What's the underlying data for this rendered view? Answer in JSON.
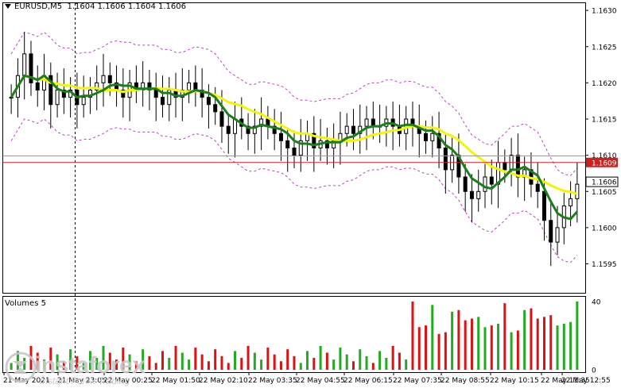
{
  "header": {
    "symbol_tf": "EURUSD,M5",
    "quote": "1.1604 1.1606 1.1604 1.1606"
  },
  "price_axis": {
    "ticks": [
      "1.1630",
      "1.1625",
      "1.1620",
      "1.1615",
      "1.1610",
      "1.1605",
      "1.1600",
      "1.1595"
    ],
    "red_label": "1.1609",
    "current_label": "1.1606"
  },
  "volume_panel": {
    "title": "Volumes 5",
    "ticks": [
      "40",
      "0"
    ]
  },
  "time_axis": {
    "labels": [
      "21 May 2021",
      "21 May 23:05",
      "22 May 00:25",
      "22 May 01:50",
      "22 May 02:10",
      "22 May 03:35",
      "22 May 04:55",
      "22 May 06:15",
      "22 May 07:35",
      "22 May 08:55",
      "22 May 10:15",
      "22 May 11:35",
      "22 May 12:55"
    ]
  },
  "watermark": {
    "name": "instaforex",
    "tagline": "Instant Forex Trading"
  },
  "colors": {
    "up": "#000000",
    "ma_fast": "#1a7f1a",
    "ma_slow": "#f5f500",
    "envelope": "#c040c0",
    "level": "#cc2222",
    "vol_up": "#22aa22",
    "vol_down": "#dd1111"
  },
  "chart_data": {
    "type": "candlestick",
    "symbol": "EURUSD",
    "timeframe": "M5",
    "ylim": [
      1.1591,
      1.1631
    ],
    "levels": [
      1.1609
    ],
    "current_price": 1.1606,
    "close_series": [
      1.1618,
      1.1621,
      1.1624,
      1.162,
      1.1619,
      1.1621,
      1.1617,
      1.1619,
      1.1618,
      1.1619,
      1.1617,
      1.1618,
      1.1619,
      1.162,
      1.1621,
      1.162,
      1.1619,
      1.1618,
      1.162,
      1.1619,
      1.162,
      1.1619,
      1.1618,
      1.1617,
      1.1619,
      1.1618,
      1.1619,
      1.162,
      1.1619,
      1.1618,
      1.1617,
      1.1616,
      1.1614,
      1.1613,
      1.1615,
      1.1614,
      1.1613,
      1.1614,
      1.1615,
      1.1614,
      1.1613,
      1.1612,
      1.1611,
      1.161,
      1.1612,
      1.1613,
      1.1611,
      1.1612,
      1.1611,
      1.1612,
      1.1613,
      1.1614,
      1.1613,
      1.1614,
      1.1615,
      1.1614,
      1.1614,
      1.1615,
      1.1614,
      1.1613,
      1.1615,
      1.1614,
      1.1613,
      1.1612,
      1.1613,
      1.1611,
      1.1608,
      1.161,
      1.1607,
      1.1605,
      1.1604,
      1.1605,
      1.1607,
      1.1606,
      1.1609,
      1.1608,
      1.161,
      1.1607,
      1.1608,
      1.1606,
      1.1605,
      1.1601,
      1.1598,
      1.16,
      1.1603,
      1.1604,
      1.1606
    ],
    "ma_fast_desc": "green moving average",
    "ma_slow_desc": "yellow moving average",
    "volumes_max": 40
  }
}
